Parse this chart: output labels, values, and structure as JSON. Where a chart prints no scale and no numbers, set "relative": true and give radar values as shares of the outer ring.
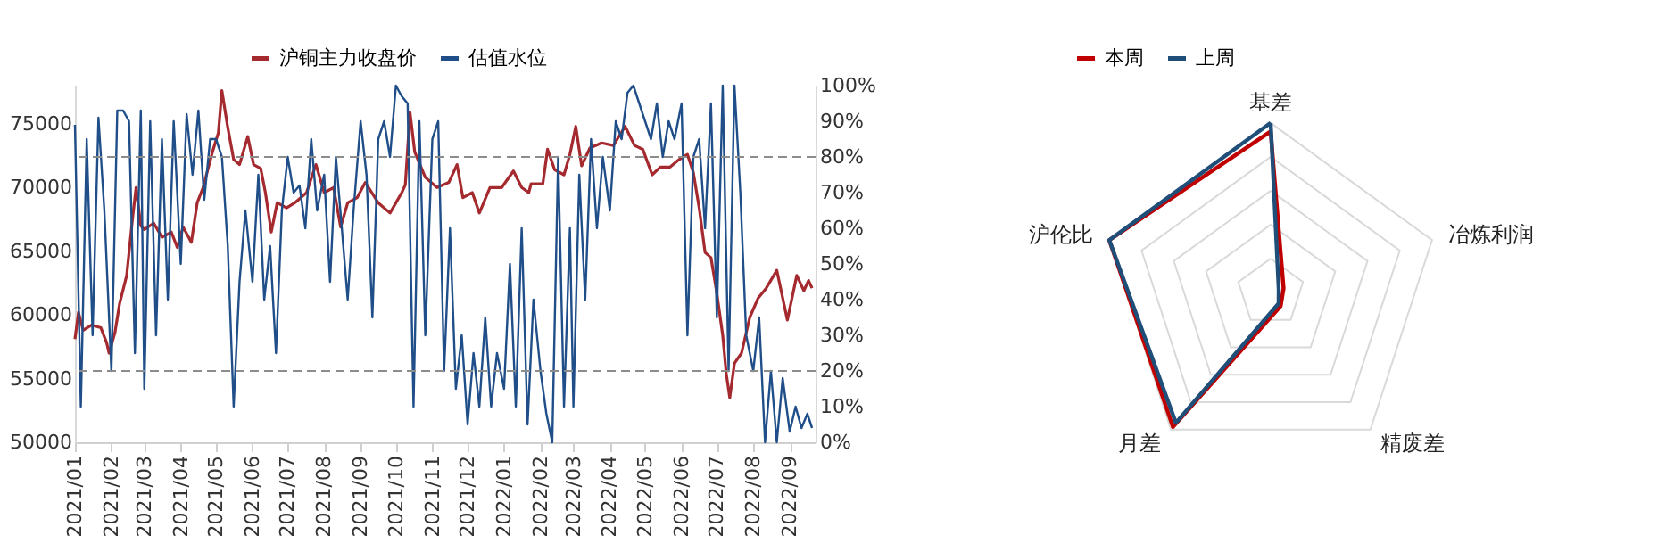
{
  "chart_data": [
    {
      "type": "line",
      "legend": "top",
      "xlim": [
        "2021-01-01",
        "2022-09-23"
      ],
      "xticks": [
        {
          "value": "2021-01-01",
          "label": "2021/01"
        },
        {
          "value": "2021-02-01",
          "label": "2021/02"
        },
        {
          "value": "2021-03-01",
          "label": "2021/03"
        },
        {
          "value": "2021-04-01",
          "label": "2021/04"
        },
        {
          "value": "2021-05-01",
          "label": "2021/05"
        },
        {
          "value": "2021-06-01",
          "label": "2021/06"
        },
        {
          "value": "2021-07-01",
          "label": "2021/07"
        },
        {
          "value": "2021-08-01",
          "label": "2021/08"
        },
        {
          "value": "2021-09-01",
          "label": "2021/09"
        },
        {
          "value": "2021-10-01",
          "label": "2021/10"
        },
        {
          "value": "2021-11-01",
          "label": "2021/11"
        },
        {
          "value": "2021-12-01",
          "label": "2021/12"
        },
        {
          "value": "2022-01-01",
          "label": "2022/01"
        },
        {
          "value": "2022-02-01",
          "label": "2022/02"
        },
        {
          "value": "2022-03-01",
          "label": "2022/03"
        },
        {
          "value": "2022-04-01",
          "label": "2022/04"
        },
        {
          "value": "2022-05-01",
          "label": "2022/05"
        },
        {
          "value": "2022-06-01",
          "label": "2022/06"
        },
        {
          "value": "2022-07-01",
          "label": "2022/07"
        },
        {
          "value": "2022-08-01",
          "label": "2022/08"
        },
        {
          "value": "2022-09-01",
          "label": "2022/09"
        }
      ],
      "ylim": [
        50000,
        78000
      ],
      "yticks": [
        50000,
        55000,
        60000,
        65000,
        70000,
        75000
      ],
      "y2lim": [
        0,
        100
      ],
      "y2ticks": [
        {
          "value": 0,
          "label": "0%"
        },
        {
          "value": 10,
          "label": "10%"
        },
        {
          "value": 20,
          "label": "20%"
        },
        {
          "value": 30,
          "label": "30%"
        },
        {
          "value": 40,
          "label": "40%"
        },
        {
          "value": 50,
          "label": "50%"
        },
        {
          "value": 60,
          "label": "60%"
        },
        {
          "value": 70,
          "label": "70%"
        },
        {
          "value": 80,
          "label": "80%"
        },
        {
          "value": 90,
          "label": "90%"
        },
        {
          "value": 100,
          "label": "100%"
        }
      ],
      "ref_lines": [
        {
          "axis": "y2",
          "value": 80,
          "color": "#8c8c8c",
          "line_style": "dashed"
        },
        {
          "axis": "y2",
          "value": 20,
          "color": "#8c8c8c",
          "line_style": "dashed"
        }
      ],
      "series": [
        {
          "name": "沪铜主力收盘价",
          "color": "#a52a2f",
          "x": [
            "2021-01-01",
            "2021-01-04",
            "2021-01-08",
            "2021-01-15",
            "2021-01-23",
            "2021-01-28",
            "2021-01-30",
            "2021-02-04",
            "2021-02-08",
            "2021-02-14",
            "2021-02-19",
            "2021-02-22",
            "2021-02-26",
            "2021-03-01",
            "2021-03-09",
            "2021-03-16",
            "2021-03-24",
            "2021-03-29",
            "2021-04-03",
            "2021-04-10",
            "2021-04-15",
            "2021-04-20",
            "2021-04-28",
            "2021-05-03",
            "2021-05-06",
            "2021-05-11",
            "2021-05-16",
            "2021-05-21",
            "2021-05-28",
            "2021-06-02",
            "2021-06-08",
            "2021-06-12",
            "2021-06-17",
            "2021-06-22",
            "2021-06-30",
            "2021-07-07",
            "2021-07-17",
            "2021-07-25",
            "2021-08-01",
            "2021-08-09",
            "2021-08-15",
            "2021-08-21",
            "2021-08-29",
            "2021-09-05",
            "2021-09-16",
            "2021-09-26",
            "2021-10-06",
            "2021-10-09",
            "2021-10-13",
            "2021-10-17",
            "2021-10-26",
            "2021-11-05",
            "2021-11-15",
            "2021-11-22",
            "2021-11-27",
            "2021-12-05",
            "2021-12-11",
            "2021-12-20",
            "2021-12-30",
            "2022-01-09",
            "2022-01-16",
            "2022-01-22",
            "2022-01-24",
            "2022-02-03",
            "2022-02-07",
            "2022-02-13",
            "2022-02-21",
            "2022-02-26",
            "2022-03-03",
            "2022-03-08",
            "2022-03-15",
            "2022-03-25",
            "2022-04-04",
            "2022-04-14",
            "2022-04-22",
            "2022-04-29",
            "2022-05-07",
            "2022-05-14",
            "2022-05-22",
            "2022-05-30",
            "2022-06-06",
            "2022-06-11",
            "2022-06-16",
            "2022-06-21",
            "2022-06-26",
            "2022-07-01",
            "2022-07-06",
            "2022-07-09",
            "2022-07-12",
            "2022-07-16",
            "2022-07-22",
            "2022-07-29",
            "2022-08-05",
            "2022-08-12",
            "2022-08-21",
            "2022-08-30",
            "2022-09-07",
            "2022-09-13",
            "2022-09-17",
            "2022-09-20"
          ],
          "values": [
            58100,
            60200,
            58800,
            59200,
            59000,
            57800,
            57000,
            58600,
            60900,
            63100,
            67600,
            70000,
            67000,
            66700,
            67200,
            66100,
            66500,
            65300,
            66900,
            65700,
            68800,
            70000,
            72800,
            74300,
            77600,
            74700,
            72200,
            71800,
            74000,
            71800,
            71500,
            69600,
            66500,
            68800,
            68400,
            68800,
            69600,
            71800,
            69600,
            70000,
            66900,
            68800,
            69200,
            70400,
            68800,
            68000,
            69600,
            70200,
            75900,
            72800,
            70800,
            70000,
            70400,
            71800,
            69200,
            69600,
            68000,
            70000,
            70000,
            71300,
            70000,
            69600,
            70300,
            70300,
            73000,
            71400,
            71000,
            72600,
            74800,
            71700,
            73100,
            73500,
            73300,
            74800,
            73300,
            73000,
            71000,
            71600,
            71600,
            72200,
            72600,
            71200,
            68400,
            64900,
            64500,
            61700,
            58400,
            55400,
            53500,
            56200,
            57000,
            59800,
            61300,
            62100,
            63500,
            59600,
            63100,
            61900,
            62700,
            62100
          ]
        },
        {
          "name": "估值水位",
          "color": "#1f4e89",
          "axis": "y2",
          "x": [
            "2021-01-01",
            "2021-01-06",
            "2021-01-11",
            "2021-01-16",
            "2021-01-21",
            "2021-01-26",
            "2021-02-01",
            "2021-02-06",
            "2021-02-11",
            "2021-02-16",
            "2021-02-21",
            "2021-02-26",
            "2021-03-01",
            "2021-03-06",
            "2021-03-11",
            "2021-03-16",
            "2021-03-21",
            "2021-03-26",
            "2021-04-01",
            "2021-04-06",
            "2021-04-11",
            "2021-04-16",
            "2021-04-21",
            "2021-04-26",
            "2021-05-01",
            "2021-05-06",
            "2021-05-11",
            "2021-05-16",
            "2021-05-21",
            "2021-05-26",
            "2021-06-01",
            "2021-06-06",
            "2021-06-11",
            "2021-06-16",
            "2021-06-21",
            "2021-06-26",
            "2021-07-01",
            "2021-07-06",
            "2021-07-11",
            "2021-07-16",
            "2021-07-21",
            "2021-07-26",
            "2021-08-01",
            "2021-08-06",
            "2021-08-11",
            "2021-08-16",
            "2021-08-21",
            "2021-08-26",
            "2021-09-01",
            "2021-09-06",
            "2021-09-11",
            "2021-09-16",
            "2021-09-21",
            "2021-09-26",
            "2021-10-01",
            "2021-10-06",
            "2021-10-11",
            "2021-10-16",
            "2021-10-21",
            "2021-10-26",
            "2021-11-01",
            "2021-11-06",
            "2021-11-11",
            "2021-11-16",
            "2021-11-21",
            "2021-11-26",
            "2021-12-01",
            "2021-12-06",
            "2021-12-11",
            "2021-12-16",
            "2021-12-21",
            "2021-12-26",
            "2022-01-01",
            "2022-01-06",
            "2022-01-11",
            "2022-01-16",
            "2022-01-21",
            "2022-01-26",
            "2022-02-01",
            "2022-02-06",
            "2022-02-11",
            "2022-02-16",
            "2022-02-21",
            "2022-02-26",
            "2022-03-01",
            "2022-03-06",
            "2022-03-11",
            "2022-03-16",
            "2022-03-21",
            "2022-03-26",
            "2022-04-01",
            "2022-04-06",
            "2022-04-11",
            "2022-04-16",
            "2022-04-21",
            "2022-04-26",
            "2022-05-01",
            "2022-05-06",
            "2022-05-11",
            "2022-05-16",
            "2022-05-21",
            "2022-05-26",
            "2022-06-01",
            "2022-06-06",
            "2022-06-11",
            "2022-06-16",
            "2022-06-21",
            "2022-06-26",
            "2022-07-01",
            "2022-07-06",
            "2022-07-11",
            "2022-07-16",
            "2022-07-21",
            "2022-07-26",
            "2022-08-01",
            "2022-08-06",
            "2022-08-11",
            "2022-08-16",
            "2022-08-21",
            "2022-08-26",
            "2022-09-01",
            "2022-09-06",
            "2022-09-11",
            "2022-09-16",
            "2022-09-20"
          ],
          "values": [
            89,
            10,
            85,
            30,
            91,
            65,
            20,
            93,
            93,
            90,
            25,
            93,
            15,
            90,
            30,
            85,
            40,
            90,
            50,
            92,
            75,
            93,
            68,
            85,
            85,
            80,
            55,
            10,
            45,
            65,
            45,
            75,
            40,
            55,
            25,
            65,
            80,
            70,
            72,
            60,
            85,
            65,
            75,
            45,
            80,
            60,
            40,
            65,
            90,
            75,
            35,
            85,
            90,
            80,
            100,
            97,
            95,
            10,
            90,
            30,
            85,
            90,
            20,
            60,
            15,
            30,
            5,
            25,
            10,
            35,
            10,
            25,
            15,
            50,
            10,
            60,
            5,
            40,
            20,
            8,
            0,
            80,
            10,
            60,
            10,
            75,
            40,
            85,
            60,
            80,
            65,
            90,
            85,
            98,
            100,
            95,
            90,
            85,
            95,
            80,
            90,
            85,
            95,
            30,
            80,
            85,
            60,
            95,
            35,
            100,
            20,
            100,
            70,
            30,
            20,
            35,
            0,
            20,
            0,
            18,
            3,
            10,
            4,
            8,
            4
          ]
        }
      ]
    },
    {
      "type": "radar",
      "relative": true,
      "legend": "top",
      "grid": true,
      "categories": [
        "基差",
        "冶炼利润",
        "精废差",
        "月差",
        "沪伦比"
      ],
      "series": [
        {
          "name": "本周",
          "color": "#c00000",
          "values": [
            0.95,
            0.08,
            0.1,
            0.98,
            1.0
          ]
        },
        {
          "name": "上周",
          "color": "#1f4e79",
          "values": [
            1.0,
            0.05,
            0.08,
            0.95,
            1.0
          ]
        }
      ]
    }
  ]
}
